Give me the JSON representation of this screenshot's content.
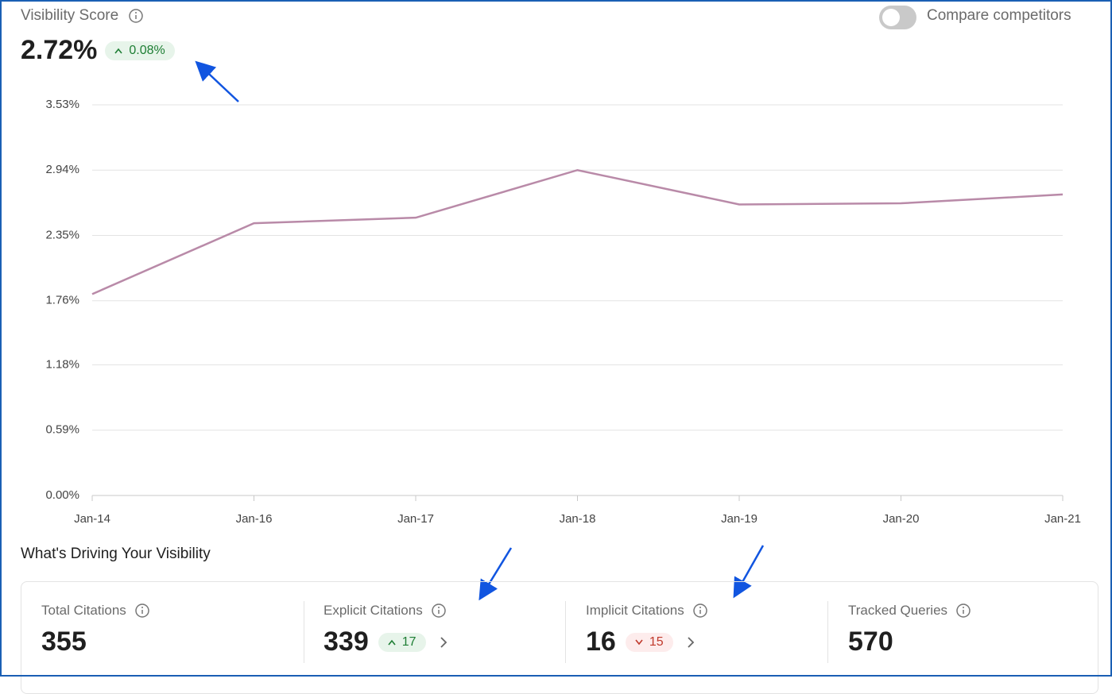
{
  "header": {
    "title": "Visibility Score",
    "value": "2.72%",
    "change": "0.08%",
    "toggle_label": "Compare competitors"
  },
  "chart_data": {
    "type": "line",
    "categories": [
      "Jan-14",
      "Jan-16",
      "Jan-17",
      "Jan-18",
      "Jan-19",
      "Jan-20",
      "Jan-21"
    ],
    "series": [
      {
        "name": "Visibility Score",
        "color": "#b98aa8",
        "values": [
          1.82,
          2.46,
          2.51,
          2.94,
          2.63,
          2.64,
          2.72
        ]
      }
    ],
    "ylim": [
      0,
      3.53
    ],
    "yticks": [
      {
        "value": 0,
        "label": "0.00%"
      },
      {
        "value": 0.59,
        "label": "0.59%"
      },
      {
        "value": 1.18,
        "label": "1.18%"
      },
      {
        "value": 1.76,
        "label": "1.76%"
      },
      {
        "value": 2.35,
        "label": "2.35%"
      },
      {
        "value": 2.94,
        "label": "2.94%"
      },
      {
        "value": 3.53,
        "label": "3.53%"
      }
    ],
    "grid": true
  },
  "section": {
    "title": "What's Driving Your Visibility",
    "cards": [
      {
        "label": "Total Citations",
        "value": "355"
      },
      {
        "label": "Explicit Citations",
        "value": "339",
        "change": "17",
        "direction": "up"
      },
      {
        "label": "Implicit Citations",
        "value": "16",
        "change": "15",
        "direction": "down"
      },
      {
        "label": "Tracked Queries",
        "value": "570"
      }
    ]
  }
}
